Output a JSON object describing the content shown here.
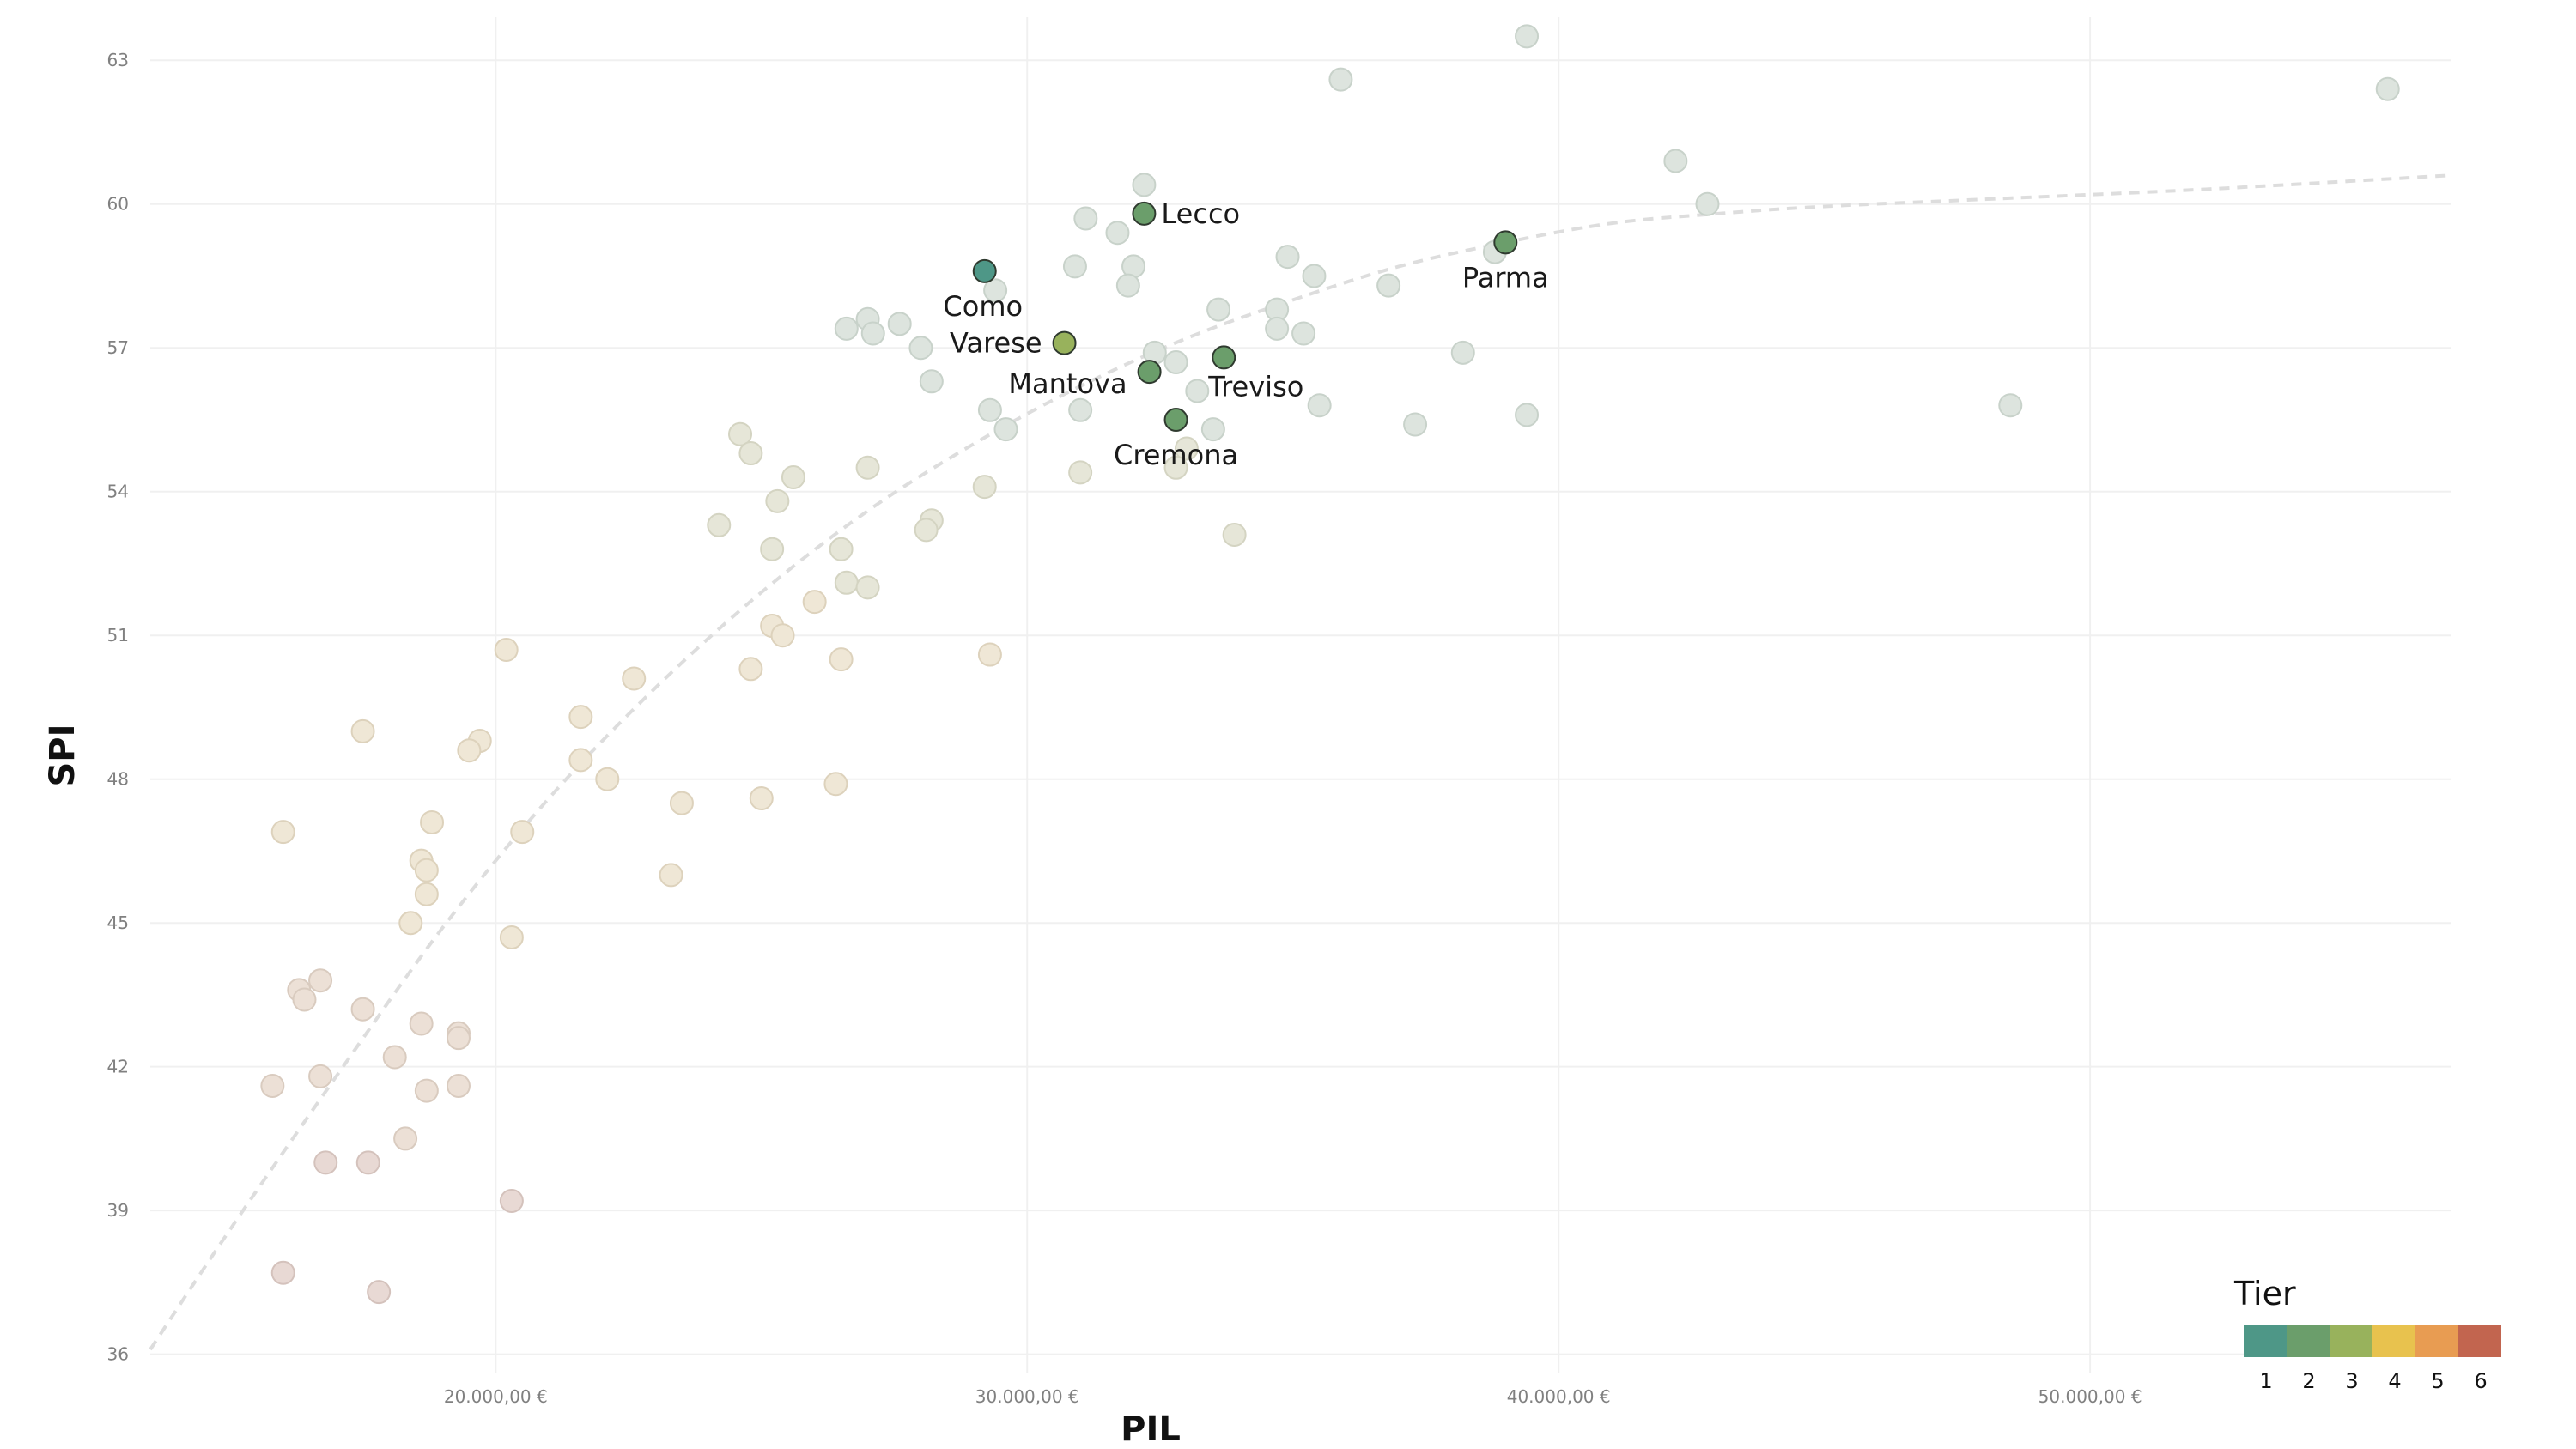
{
  "chart_data": {
    "type": "scatter",
    "title": "",
    "xlabel": "PIL",
    "ylabel": "SPI",
    "xlim": [
      13500,
      56800
    ],
    "ylim": [
      35.6,
      63.9
    ],
    "x_ticks": [
      {
        "value": 20000,
        "label": "20.000,00 €"
      },
      {
        "value": 30000,
        "label": "30.000,00 €"
      },
      {
        "value": 40000,
        "label": "40.000,00 €"
      },
      {
        "value": 50000,
        "label": "50.000,00 €"
      }
    ],
    "y_ticks": [
      {
        "value": 36,
        "label": "36"
      },
      {
        "value": 39,
        "label": "39"
      },
      {
        "value": 42,
        "label": "42"
      },
      {
        "value": 45,
        "label": "45"
      },
      {
        "value": 48,
        "label": "48"
      },
      {
        "value": 51,
        "label": "51"
      },
      {
        "value": 54,
        "label": "54"
      },
      {
        "value": 57,
        "label": "57"
      },
      {
        "value": 60,
        "label": "60"
      },
      {
        "value": 63,
        "label": "63"
      }
    ],
    "trend_curve": {
      "style": "dashed",
      "color": "#dddddd",
      "points": [
        [
          13500,
          36.1
        ],
        [
          15000,
          38.6
        ],
        [
          17000,
          41.8
        ],
        [
          19000,
          44.9
        ],
        [
          21000,
          47.6
        ],
        [
          23000,
          49.9
        ],
        [
          25000,
          51.9
        ],
        [
          27000,
          53.6
        ],
        [
          29000,
          55.0
        ],
        [
          31000,
          56.2
        ],
        [
          33000,
          57.2
        ],
        [
          35000,
          58.0
        ],
        [
          37000,
          58.7
        ],
        [
          39000,
          59.2
        ],
        [
          41000,
          59.6
        ],
        [
          43000,
          59.8
        ],
        [
          45000,
          59.95
        ],
        [
          48000,
          60.1
        ],
        [
          52000,
          60.3
        ],
        [
          56800,
          60.6
        ]
      ]
    },
    "legend": {
      "title": "Tier",
      "position": "bottom-right",
      "entries": [
        {
          "label": "1",
          "color": "#4e9787"
        },
        {
          "label": "2",
          "color": "#6b9e6b"
        },
        {
          "label": "3",
          "color": "#98b25c"
        },
        {
          "label": "4",
          "color": "#e8c24e"
        },
        {
          "label": "5",
          "color": "#e89c52"
        },
        {
          "label": "6",
          "color": "#c2654f"
        }
      ]
    },
    "highlighted": [
      {
        "name": "Como",
        "x": 29200,
        "y": 58.6,
        "tier": 1,
        "color": "#4e9787"
      },
      {
        "name": "Lecco",
        "x": 32200,
        "y": 59.8,
        "tier": 2,
        "color": "#6b9e6b"
      },
      {
        "name": "Parma",
        "x": 39000,
        "y": 59.2,
        "tier": 2,
        "color": "#6b9e6b"
      },
      {
        "name": "Varese",
        "x": 30700,
        "y": 57.1,
        "tier": 3,
        "color": "#98b25c"
      },
      {
        "name": "Mantova",
        "x": 32300,
        "y": 56.5,
        "tier": 2,
        "color": "#6b9e6b"
      },
      {
        "name": "Treviso",
        "x": 33700,
        "y": 56.8,
        "tier": 2,
        "color": "#6b9e6b"
      },
      {
        "name": "Cremona",
        "x": 32800,
        "y": 55.5,
        "tier": 2,
        "color": "#6b9e6b"
      }
    ],
    "background_points": [
      [
        39400,
        63.5
      ],
      [
        35900,
        62.6
      ],
      [
        55600,
        62.4
      ],
      [
        42200,
        60.9
      ],
      [
        42800,
        60.0
      ],
      [
        32200,
        60.4
      ],
      [
        31100,
        59.7
      ],
      [
        31700,
        59.4
      ],
      [
        34900,
        58.9
      ],
      [
        35400,
        58.5
      ],
      [
        30900,
        58.7
      ],
      [
        32000,
        58.7
      ],
      [
        31900,
        58.3
      ],
      [
        29400,
        58.2
      ],
      [
        38800,
        59.0
      ],
      [
        36800,
        58.3
      ],
      [
        33600,
        57.8
      ],
      [
        34700,
        57.8
      ],
      [
        34700,
        57.4
      ],
      [
        35200,
        57.3
      ],
      [
        27000,
        57.6
      ],
      [
        27600,
        57.5
      ],
      [
        26600,
        57.4
      ],
      [
        27100,
        57.3
      ],
      [
        28000,
        57.0
      ],
      [
        32400,
        56.9
      ],
      [
        32800,
        56.7
      ],
      [
        38200,
        56.9
      ],
      [
        28200,
        56.3
      ],
      [
        33200,
        56.1
      ],
      [
        31000,
        55.7
      ],
      [
        29300,
        55.7
      ],
      [
        29600,
        55.3
      ],
      [
        35500,
        55.8
      ],
      [
        37300,
        55.4
      ],
      [
        39400,
        55.6
      ],
      [
        48500,
        55.8
      ],
      [
        33500,
        55.3
      ],
      [
        33000,
        54.9
      ],
      [
        32800,
        54.5
      ],
      [
        31000,
        54.4
      ],
      [
        27000,
        54.5
      ],
      [
        24600,
        55.2
      ],
      [
        24800,
        54.8
      ],
      [
        25600,
        54.3
      ],
      [
        25300,
        53.8
      ],
      [
        29200,
        54.1
      ],
      [
        24200,
        53.3
      ],
      [
        28200,
        53.4
      ],
      [
        28100,
        53.2
      ],
      [
        33900,
        53.1
      ],
      [
        25200,
        52.8
      ],
      [
        26500,
        52.8
      ],
      [
        26600,
        52.1
      ],
      [
        27000,
        52.0
      ],
      [
        26000,
        51.7
      ],
      [
        25200,
        51.2
      ],
      [
        25400,
        51.0
      ],
      [
        24800,
        50.3
      ],
      [
        26500,
        50.5
      ],
      [
        29300,
        50.6
      ],
      [
        20200,
        50.7
      ],
      [
        22600,
        50.1
      ],
      [
        21600,
        49.3
      ],
      [
        17500,
        49.0
      ],
      [
        19700,
        48.8
      ],
      [
        19500,
        48.6
      ],
      [
        21600,
        48.4
      ],
      [
        22100,
        48.0
      ],
      [
        26400,
        47.9
      ],
      [
        23500,
        47.5
      ],
      [
        25000,
        47.6
      ],
      [
        18800,
        47.1
      ],
      [
        20500,
        46.9
      ],
      [
        16000,
        46.9
      ],
      [
        18600,
        46.3
      ],
      [
        18700,
        46.1
      ],
      [
        23300,
        46.0
      ],
      [
        18700,
        45.6
      ],
      [
        18400,
        45.0
      ],
      [
        20300,
        44.7
      ],
      [
        16700,
        43.8
      ],
      [
        16300,
        43.6
      ],
      [
        16400,
        43.4
      ],
      [
        17500,
        43.2
      ],
      [
        18600,
        42.9
      ],
      [
        19300,
        42.7
      ],
      [
        19300,
        42.6
      ],
      [
        18100,
        42.2
      ],
      [
        16700,
        41.8
      ],
      [
        15800,
        41.6
      ],
      [
        18700,
        41.5
      ],
      [
        19300,
        41.6
      ],
      [
        18300,
        40.5
      ],
      [
        16800,
        40.0
      ],
      [
        17600,
        40.0
      ],
      [
        20300,
        39.2
      ],
      [
        16000,
        37.7
      ],
      [
        17800,
        37.3
      ]
    ]
  }
}
